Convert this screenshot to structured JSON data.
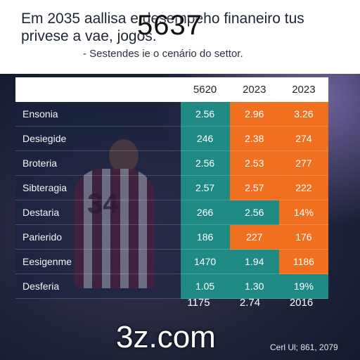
{
  "header": {
    "title": "Em 2035 aallisa e desempeho finaneiro tus privese a vae, jogos.",
    "subtitle": "- Sestendes ie o cenário do settor.",
    "overlay_number": "5637"
  },
  "scene": {
    "jersey_number": "34"
  },
  "table": {
    "columns": [
      "5620",
      "2023",
      "2023"
    ],
    "rows": [
      {
        "label": "Ensonia",
        "values": [
          "2.56",
          "2.96",
          "3.26"
        ],
        "colors": [
          "teal",
          "orange",
          "orange"
        ]
      },
      {
        "label": "Desiegide",
        "values": [
          "246",
          "2.38",
          "274"
        ],
        "colors": [
          "teal",
          "orange",
          "orange"
        ]
      },
      {
        "label": "Broteria",
        "values": [
          "2.56",
          "2.53",
          "277"
        ],
        "colors": [
          "teal",
          "orange",
          "orange"
        ]
      },
      {
        "label": "Sibteragia",
        "values": [
          "2.57",
          "2.57",
          "222"
        ],
        "colors": [
          "teal",
          "orange",
          "orange"
        ]
      },
      {
        "label": "Destaria",
        "values": [
          "266",
          "2.56",
          "14%"
        ],
        "colors": [
          "teal",
          "teal",
          "orange"
        ]
      },
      {
        "label": "Parierido",
        "values": [
          "186",
          "227",
          "176"
        ],
        "colors": [
          "teal",
          "orange",
          "orange"
        ]
      },
      {
        "label": "Eesigenme",
        "values": [
          "1470",
          "1.94",
          "1186"
        ],
        "colors": [
          "teal",
          "teal",
          "orange"
        ]
      },
      {
        "label": "Desferia",
        "values": [
          "1.05",
          "1.30",
          "19%"
        ],
        "colors": [
          "teal",
          "teal",
          "teal"
        ]
      }
    ],
    "totals": [
      "1175",
      "2.74",
      "2016"
    ]
  },
  "watermark": "3z.com",
  "footnote": "Cerl Ul; 861, 2079",
  "colors": {
    "teal": "#1f8a84",
    "orange": "#f07020",
    "background": "#1a2340"
  }
}
